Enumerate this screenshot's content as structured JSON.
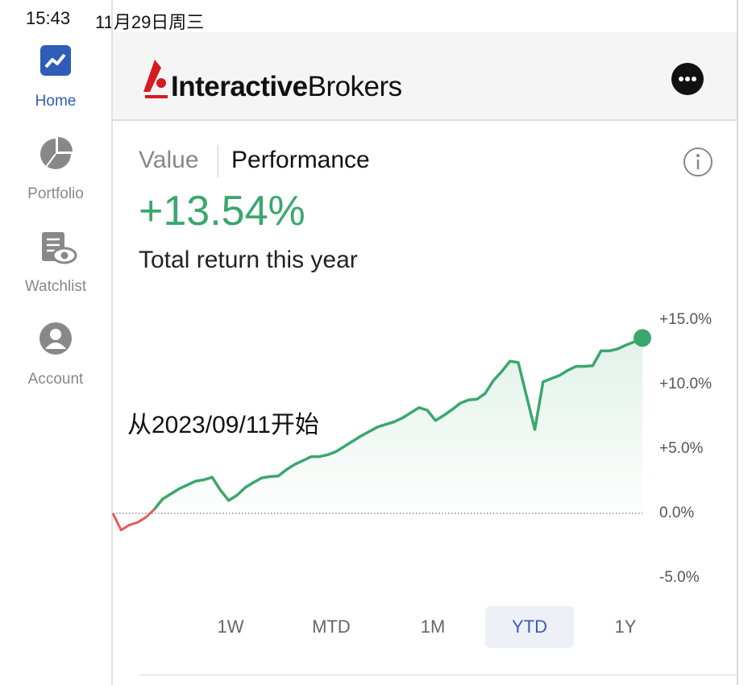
{
  "status_bar": {
    "time": "15:43",
    "date": "11月29日周三"
  },
  "sidebar": {
    "items": [
      {
        "label": "Home",
        "active": true
      },
      {
        "label": "Portfolio",
        "active": false
      },
      {
        "label": "Watchlist",
        "active": false
      },
      {
        "label": "Account",
        "active": false
      }
    ]
  },
  "header": {
    "logo": {
      "bold": "Interactive",
      "regular": "Brokers"
    }
  },
  "panel": {
    "tabs": [
      "Value",
      "Performance"
    ],
    "active_tab": 1,
    "return_value": "+13.54%",
    "return_caption": "Total return this year",
    "annotation": "从2023/09/11开始",
    "ranges": [
      "1W",
      "MTD",
      "1M",
      "YTD",
      "1Y"
    ],
    "selected_range": 3
  },
  "chart_data": {
    "type": "line",
    "color": "#3aa76d",
    "negative_color": "#e8595a",
    "values": [
      0,
      -1.3,
      -0.9,
      -0.7,
      -0.3,
      0.3,
      1.1,
      1.5,
      1.9,
      2.2,
      2.5,
      2.6,
      2.8,
      1.8,
      1.0,
      1.4,
      2.0,
      2.4,
      2.75,
      2.85,
      2.9,
      3.4,
      3.8,
      4.1,
      4.4,
      4.4,
      4.55,
      4.8,
      5.2,
      5.6,
      6.0,
      6.35,
      6.7,
      6.9,
      7.1,
      7.4,
      7.8,
      8.2,
      8.0,
      7.2,
      7.6,
      8.05,
      8.55,
      8.8,
      8.85,
      9.3,
      10.3,
      11.0,
      11.8,
      11.7,
      9.1,
      6.5,
      10.2,
      10.45,
      10.7,
      11.1,
      11.4,
      11.4,
      11.45,
      12.6,
      12.6,
      12.75,
      13.05,
      13.3,
      13.6
    ],
    "ylim": [
      -5,
      15
    ],
    "yticks": [
      {
        "value": -5,
        "label": "-5.0%"
      },
      {
        "value": 0,
        "label": "0.0%"
      },
      {
        "value": 5,
        "label": "+5.0%"
      },
      {
        "value": 10,
        "label": "+10.0%"
      },
      {
        "value": 15,
        "label": "+15.0%"
      }
    ]
  }
}
